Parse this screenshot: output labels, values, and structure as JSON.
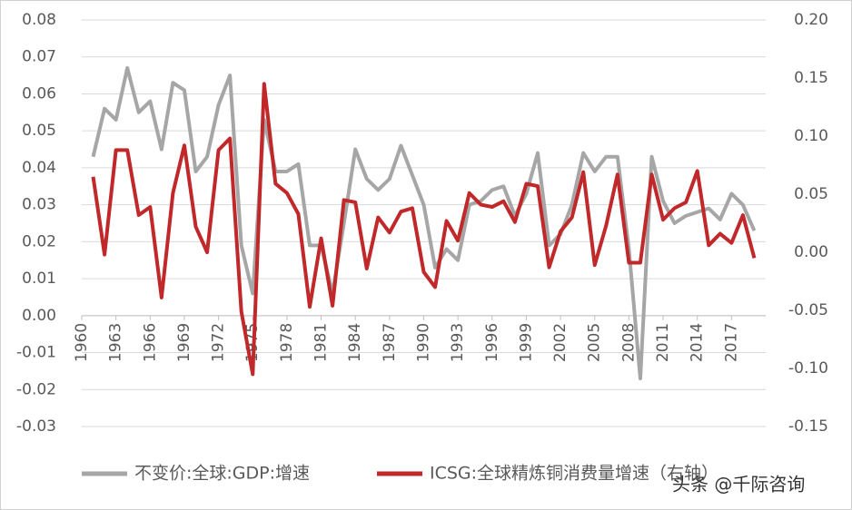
{
  "chart_data": {
    "type": "line",
    "x": [
      1961,
      1962,
      1963,
      1964,
      1965,
      1966,
      1967,
      1968,
      1969,
      1970,
      1971,
      1972,
      1973,
      1974,
      1975,
      1976,
      1977,
      1978,
      1979,
      1980,
      1981,
      1982,
      1983,
      1984,
      1985,
      1986,
      1987,
      1988,
      1989,
      1990,
      1991,
      1992,
      1993,
      1994,
      1995,
      1996,
      1997,
      1998,
      1999,
      2000,
      2001,
      2002,
      2003,
      2004,
      2005,
      2006,
      2007,
      2008,
      2009,
      2010,
      2011,
      2012,
      2013,
      2014,
      2015,
      2016,
      2017,
      2018,
      2019
    ],
    "xlim": [
      1960,
      2020
    ],
    "xticks": [
      1960,
      1963,
      1966,
      1969,
      1972,
      1975,
      1978,
      1981,
      1984,
      1987,
      1990,
      1993,
      1996,
      1999,
      2002,
      2005,
      2008,
      2011,
      2014,
      2017
    ],
    "ylim": [
      -0.03,
      0.08
    ],
    "yticks": [
      -0.03,
      -0.02,
      -0.01,
      {
        "value": 0,
        "label": "0.00"
      },
      0.01,
      0.02,
      0.03,
      0.04,
      0.05,
      0.06,
      0.07,
      0.08
    ],
    "y2lim": [
      -0.15,
      0.2
    ],
    "y2ticks": [
      -0.15,
      {
        "value": -0.1,
        "label": "-0.10"
      },
      -0.05,
      {
        "value": 0,
        "label": "0.00"
      },
      0.05,
      {
        "value": 0.1,
        "label": "0.10"
      },
      0.15,
      {
        "value": 0.2,
        "label": "0.20"
      }
    ],
    "grid": true,
    "legend": "bottom",
    "series": [
      {
        "name": "不变价:全球:GDP:增速",
        "color": "#a6a6a6",
        "values": [
          0.043,
          0.056,
          0.053,
          0.067,
          0.055,
          0.058,
          0.045,
          0.063,
          0.061,
          0.039,
          0.043,
          0.057,
          0.065,
          0.019,
          0.006,
          0.053,
          0.039,
          0.039,
          0.041,
          0.019,
          0.019,
          0.006,
          0.025,
          0.045,
          0.037,
          0.034,
          0.037,
          0.046,
          0.038,
          0.03,
          0.013,
          0.018,
          0.015,
          0.03,
          0.031,
          0.034,
          0.035,
          0.027,
          0.033,
          0.044,
          0.019,
          0.022,
          0.03,
          0.044,
          0.039,
          0.043,
          0.043,
          0.018,
          -0.017,
          0.043,
          0.031,
          0.025,
          0.027,
          0.028,
          0.029,
          0.026,
          0.033,
          0.03,
          0.023
        ]
      },
      {
        "name": "ICSG:全球精炼铜消费量增速（右轴）",
        "color": "#c0282a",
        "axis": "y2",
        "values": [
          0.065,
          -0.002,
          0.088,
          0.088,
          0.032,
          0.039,
          -0.039,
          0.051,
          0.092,
          0.022,
          0.0,
          0.088,
          0.098,
          -0.051,
          -0.105,
          0.145,
          0.059,
          0.051,
          0.033,
          -0.047,
          0.012,
          -0.046,
          0.045,
          0.043,
          -0.014,
          0.03,
          0.017,
          0.035,
          0.038,
          -0.017,
          -0.03,
          0.027,
          0.01,
          0.051,
          0.041,
          0.039,
          0.044,
          0.026,
          0.059,
          0.057,
          -0.013,
          0.018,
          0.03,
          0.069,
          -0.011,
          0.023,
          0.067,
          -0.009,
          -0.009,
          0.067,
          0.028,
          0.038,
          0.043,
          0.07,
          0.006,
          0.016,
          0.008,
          0.032,
          -0.005
        ]
      }
    ],
    "watermark": "头条 @千际咨询"
  }
}
